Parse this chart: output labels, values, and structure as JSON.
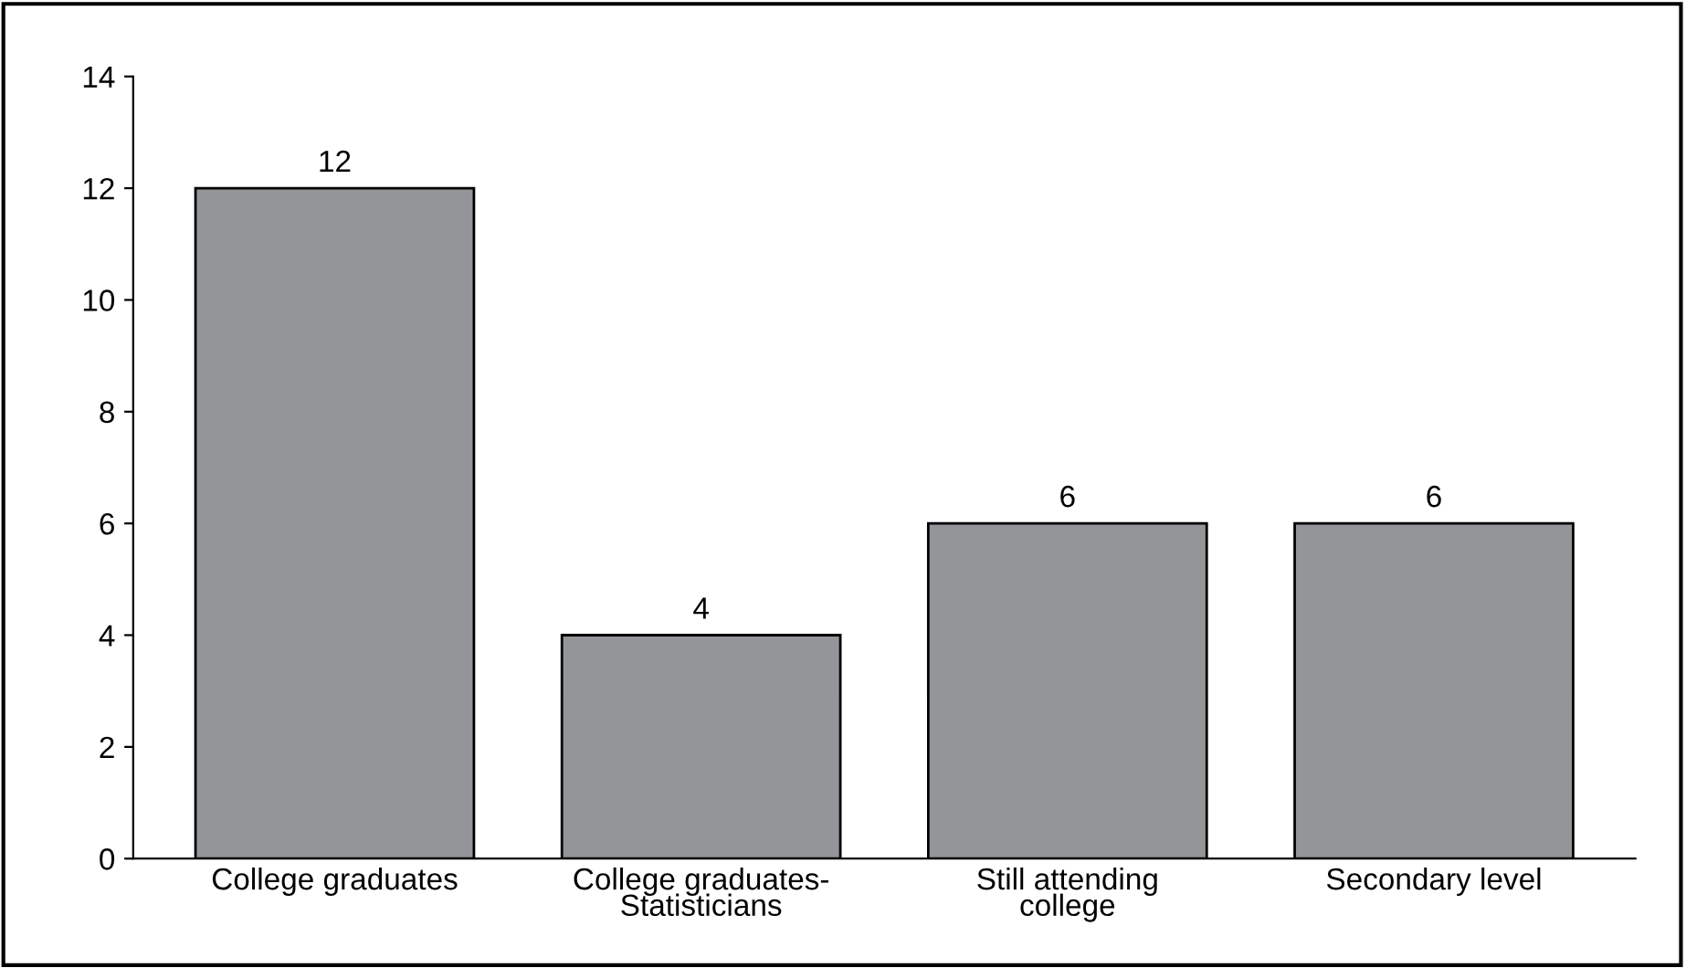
{
  "chart_data": {
    "type": "bar",
    "categories": [
      "College graduates",
      "College graduates-\nStatisticians",
      "Still attending\ncollege",
      "Secondary level"
    ],
    "values": [
      12,
      4,
      6,
      6
    ],
    "color": "#939598",
    "ylim": [
      0,
      14
    ],
    "yticks": [
      0,
      2,
      4,
      6,
      8,
      10,
      12,
      14
    ],
    "data_labels": true,
    "grid": false,
    "legend": false
  }
}
